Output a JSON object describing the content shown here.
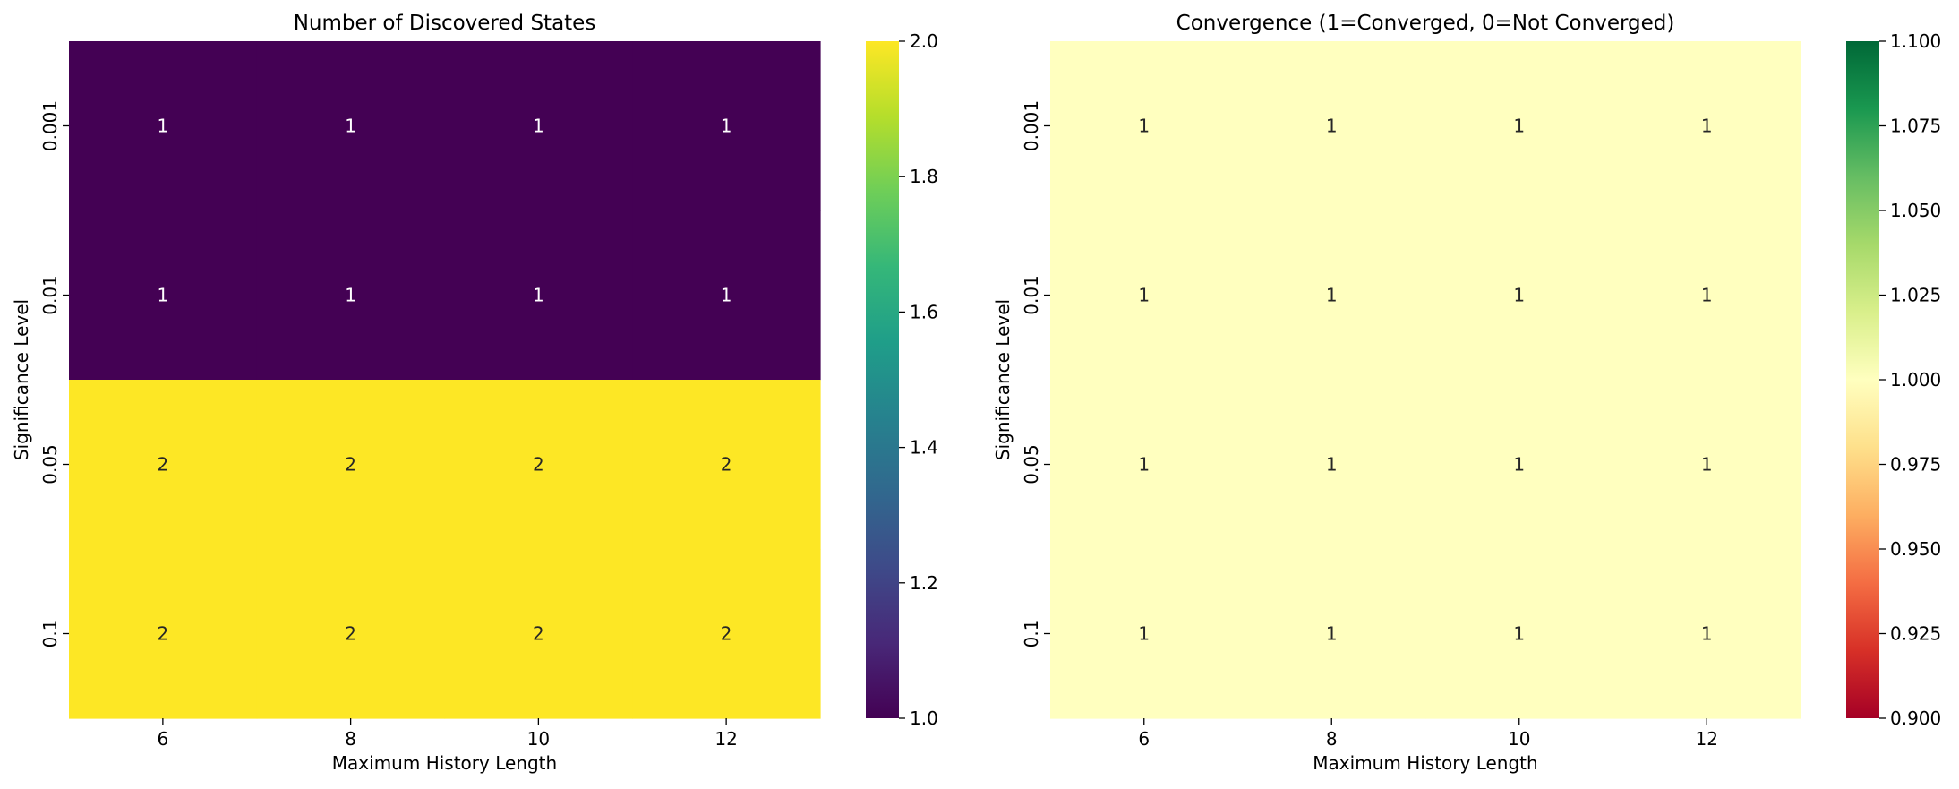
{
  "chart_data": [
    {
      "type": "heatmap",
      "title": "Number of Discovered States",
      "xlabel": "Maximum History Length",
      "ylabel": "Significance Level",
      "x": [
        "6",
        "8",
        "10",
        "12"
      ],
      "y": [
        "0.001",
        "0.01",
        "0.05",
        "0.1"
      ],
      "values": [
        [
          1,
          1,
          1,
          1
        ],
        [
          1,
          1,
          1,
          1
        ],
        [
          2,
          2,
          2,
          2
        ],
        [
          2,
          2,
          2,
          2
        ]
      ],
      "annotations": [
        [
          "1",
          "1",
          "1",
          "1"
        ],
        [
          "1",
          "1",
          "1",
          "1"
        ],
        [
          "2",
          "2",
          "2",
          "2"
        ],
        [
          "2",
          "2",
          "2",
          "2"
        ]
      ],
      "colormap": "viridis",
      "colorbar": {
        "range": [
          1.0,
          2.0
        ],
        "ticks": [
          1.0,
          1.2,
          1.4,
          1.6,
          1.8,
          2.0
        ],
        "tick_labels": [
          "1.0",
          "1.2",
          "1.4",
          "1.6",
          "1.8",
          "2.0"
        ],
        "stops": [
          "#440154",
          "#482878",
          "#3e4a89",
          "#31688e",
          "#26828e",
          "#1f9e89",
          "#35b779",
          "#6ece58",
          "#b5de2b",
          "#fde725"
        ]
      }
    },
    {
      "type": "heatmap",
      "title": "Convergence (1=Converged, 0=Not Converged)",
      "xlabel": "Maximum History Length",
      "ylabel": "Significance Level",
      "x": [
        "6",
        "8",
        "10",
        "12"
      ],
      "y": [
        "0.001",
        "0.01",
        "0.05",
        "0.1"
      ],
      "values": [
        [
          1,
          1,
          1,
          1
        ],
        [
          1,
          1,
          1,
          1
        ],
        [
          1,
          1,
          1,
          1
        ],
        [
          1,
          1,
          1,
          1
        ]
      ],
      "annotations": [
        [
          "1",
          "1",
          "1",
          "1"
        ],
        [
          "1",
          "1",
          "1",
          "1"
        ],
        [
          "1",
          "1",
          "1",
          "1"
        ],
        [
          "1",
          "1",
          "1",
          "1"
        ]
      ],
      "colormap": "RdYlGn",
      "colorbar": {
        "range": [
          0.9,
          1.1
        ],
        "ticks": [
          0.9,
          0.925,
          0.95,
          0.975,
          1.0,
          1.025,
          1.05,
          1.075,
          1.1
        ],
        "tick_labels": [
          "0.900",
          "0.925",
          "0.950",
          "0.975",
          "1.000",
          "1.025",
          "1.050",
          "1.075",
          "1.100"
        ],
        "stops": [
          "#a50026",
          "#d73027",
          "#f46d43",
          "#fdae61",
          "#fee08b",
          "#ffffbf",
          "#d9ef8b",
          "#a6d96a",
          "#66bd63",
          "#1a9850",
          "#006837"
        ]
      }
    }
  ]
}
